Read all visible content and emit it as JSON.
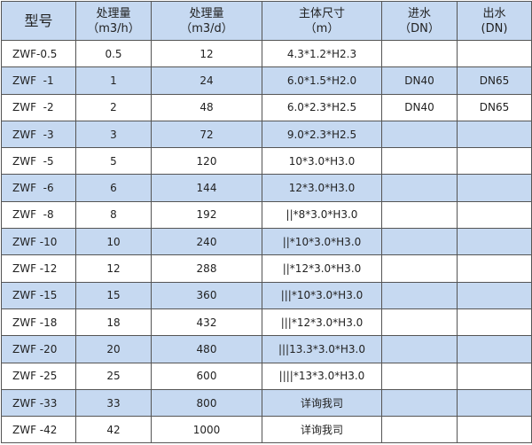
{
  "headers": [
    {
      "line1": "型号",
      "line2": ""
    },
    {
      "line1": "处理量",
      "line2": "（m3/h）"
    },
    {
      "line1": "处理量",
      "line2": "（m3/d）"
    },
    {
      "line1": "主体尺寸",
      "line2": "（m）"
    },
    {
      "line1": "进水",
      "line2": "（DN）"
    },
    {
      "line1": "出水",
      "line2": "(DN)"
    }
  ],
  "rows": [
    [
      "ZWF-0.5",
      "0.5",
      "12",
      "4.3*1.2*H2.3",
      "",
      ""
    ],
    [
      "ZWF  -1",
      "1",
      "24",
      "6.0*1.5*H2.0",
      "DN40",
      "DN65"
    ],
    [
      "ZWF  -2",
      "2",
      "48",
      "6.0*2.3*H2.5",
      "DN40",
      "DN65"
    ],
    [
      "ZWF  -3",
      "3",
      "72",
      "9.0*2.3*H2.5",
      "",
      ""
    ],
    [
      "ZWF  -5",
      "5",
      "120",
      "10*3.0*H3.0",
      "",
      ""
    ],
    [
      "ZWF  -6",
      "6",
      "144",
      "12*3.0*H3.0",
      "",
      ""
    ],
    [
      "ZWF  -8",
      "8",
      "192",
      "||*8*3.0*H3.0",
      "",
      ""
    ],
    [
      "ZWF -10",
      "10",
      "240",
      "||*10*3.0*H3.0",
      "",
      ""
    ],
    [
      "ZWF -12",
      "12",
      "288",
      "||*12*3.0*H3.0",
      "",
      ""
    ],
    [
      "ZWF -15",
      "15",
      "360",
      "|||*10*3.0*H3.0",
      "",
      ""
    ],
    [
      "ZWF -18",
      "18",
      "432",
      "|||*12*3.0*H3.0",
      "",
      ""
    ],
    [
      "ZWF -20",
      "20",
      "480",
      "|||13.3*3.0*H3.0",
      "",
      ""
    ],
    [
      "ZWF -25",
      "25",
      "600",
      "||||*13*3.0*H3.0",
      "",
      ""
    ],
    [
      "ZWF -33",
      "33",
      "800",
      "详询我司",
      "",
      ""
    ],
    [
      "ZWF -42",
      "42",
      "1000",
      "详询我司",
      "",
      ""
    ]
  ],
  "colors": {
    "header_bg": "#c6d9f1",
    "alt_row_bg": "#c6d9f1",
    "border": "#555555"
  }
}
